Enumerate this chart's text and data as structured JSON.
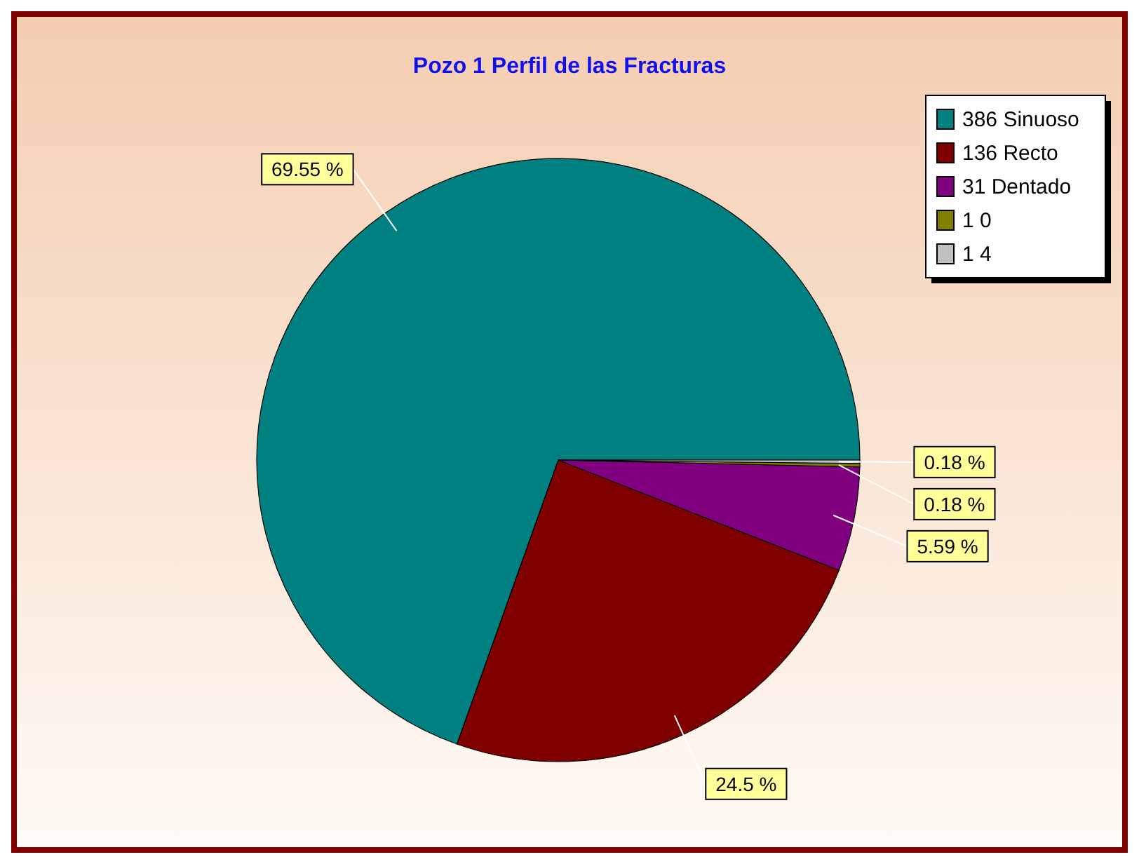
{
  "chart_data": {
    "type": "pie",
    "title": "Pozo 1 Perfil de las Fracturas",
    "categories": [
      "386 Sinuoso",
      "136 Recto",
      "31 Dentado",
      "1 0",
      "1 4"
    ],
    "values": [
      69.55,
      24.5,
      5.59,
      0.18,
      0.18
    ],
    "value_labels": [
      "69.55 %",
      "24.5 %",
      "5.59 %",
      "0.18 %",
      "0.18 %"
    ],
    "colors": [
      "#008080",
      "#800000",
      "#800080",
      "#808000",
      "#c0c0c0"
    ],
    "legend": "top right"
  }
}
